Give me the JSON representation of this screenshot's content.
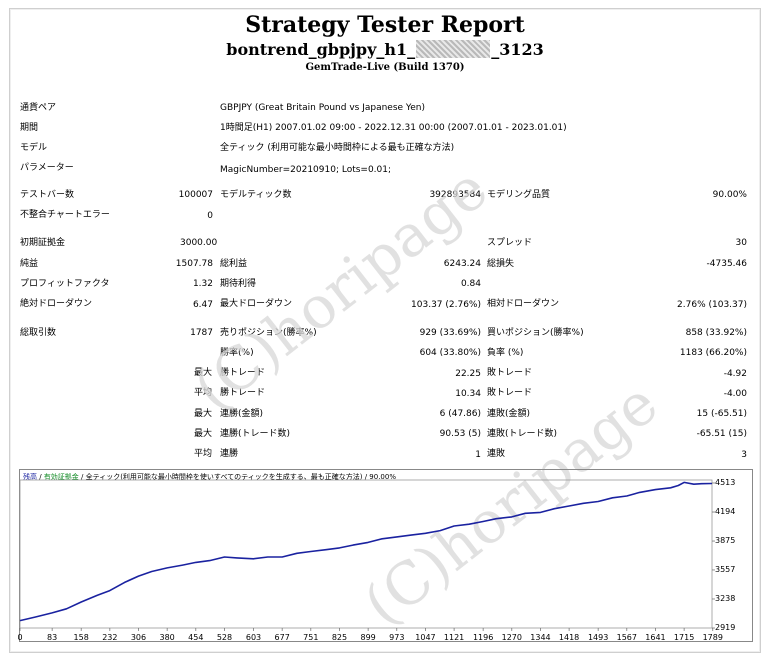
{
  "report": {
    "title": "Strategy Tester Report",
    "ea_name_prefix": "bontrend_gbpjpy_h1_",
    "ea_name_suffix": "_3123",
    "build": "GemTrade-Live (Build 1370)"
  },
  "settings": [
    {
      "label": "通貨ペア",
      "value": "GBPJPY (Great Britain Pound vs Japanese Yen)"
    },
    {
      "label": "期間",
      "value": "1時間足(H1) 2007.01.02 09:00 - 2022.12.31 00:00 (2007.01.01 - 2023.01.01)"
    },
    {
      "label": "モデル",
      "value": "全ティック (利用可能な最小時間枠による最も正確な方法)"
    },
    {
      "label": "パラメーター",
      "value": "MagicNumber=20210910; Lots=0.01;"
    }
  ],
  "stats": {
    "bars_label": "テストバー数",
    "bars": "100007",
    "ticks_label": "モデルティック数",
    "ticks": "392893584",
    "quality_label": "モデリング品質",
    "quality": "90.00%",
    "mismatch_label": "不整合チャートエラー",
    "mismatch": "0",
    "deposit_label": "初期証拠金",
    "deposit": "3000.00",
    "spread_label": "スプレッド",
    "spread": "30",
    "net_label": "純益",
    "net": "1507.78",
    "gross_profit_label": "総利益",
    "gross_profit": "6243.24",
    "gross_loss_label": "総損失",
    "gross_loss": "-4735.46",
    "pf_label": "プロフィットファクタ",
    "pf": "1.32",
    "expected_label": "期待利得",
    "expected": "0.84",
    "abs_dd_label": "絶対ドローダウン",
    "abs_dd": "6.47",
    "max_dd_label": "最大ドローダウン",
    "max_dd": "103.37 (2.76%)",
    "rel_dd_label": "相対ドローダウン",
    "rel_dd": "2.76% (103.37)",
    "total_trades_label": "総取引数",
    "total_trades": "1787",
    "short_label": "売りポジション(勝率%)",
    "short": "929 (33.69%)",
    "long_label": "買いポジション(勝率%)",
    "long": "858 (33.92%)",
    "win_pct_label": "勝率(%)",
    "win_pct": "604 (33.80%)",
    "loss_pct_label": "負率 (%)",
    "loss_pct": "1183 (66.20%)",
    "max_win_label": "勝トレード",
    "max_win": "22.25",
    "max_loss_label": "敗トレード",
    "max_loss": "-4.92",
    "avg_win_label": "勝トレード",
    "avg_win": "10.34",
    "avg_loss_label": "敗トレード",
    "avg_loss": "-4.00",
    "cons_wins_label": "連勝(金額)",
    "cons_wins": "6 (47.86)",
    "cons_losses_label": "連敗(金額)",
    "cons_losses": "15 (-65.51)",
    "cons_profit_label": "連勝(トレード数)",
    "cons_profit": "90.53 (5)",
    "cons_loss_label": "連敗(トレード数)",
    "cons_loss": "-65.51 (15)",
    "avg_cons_wins_label": "連勝",
    "avg_cons_wins": "1",
    "avg_cons_losses_label": "連敗",
    "avg_cons_losses": "3",
    "max_prefix": "最大",
    "avg_prefix": "平均"
  },
  "watermark": "(C)horipage",
  "chart_legend": {
    "balance": "残高",
    "equity": "有効証拠金",
    "model": "全ティック(利用可能な最小時間枠を使いすべてのティックを生成する、最も正確な方法)",
    "quality": "90.00%"
  },
  "chart_data": {
    "type": "line",
    "x_ticks": [
      "0",
      "83",
      "158",
      "232",
      "306",
      "380",
      "454",
      "528",
      "603",
      "677",
      "751",
      "825",
      "899",
      "973",
      "1047",
      "1121",
      "1196",
      "1270",
      "1344",
      "1418",
      "1493",
      "1567",
      "1641",
      "1715",
      "1789"
    ],
    "y_ticks": [
      "4513",
      "4194",
      "3875",
      "3557",
      "3238",
      "2919"
    ],
    "ylim": [
      2919,
      4513
    ],
    "xlim": [
      0,
      1787
    ],
    "series": [
      {
        "color": "#1a22a0",
        "x": [
          0,
          40,
          83,
          120,
          158,
          200,
          232,
          270,
          306,
          340,
          380,
          420,
          454,
          490,
          528,
          560,
          603,
          640,
          677,
          715,
          751,
          790,
          825,
          860,
          899,
          935,
          973,
          1010,
          1047,
          1085,
          1121,
          1160,
          1196,
          1230,
          1270,
          1305,
          1344,
          1380,
          1418,
          1455,
          1493,
          1530,
          1567,
          1600,
          1641,
          1680,
          1700,
          1715,
          1740,
          1760,
          1787
        ],
        "values": [
          3000,
          3040,
          3085,
          3130,
          3205,
          3280,
          3330,
          3420,
          3490,
          3540,
          3580,
          3610,
          3640,
          3660,
          3700,
          3690,
          3680,
          3700,
          3700,
          3740,
          3760,
          3780,
          3800,
          3830,
          3860,
          3900,
          3920,
          3940,
          3960,
          3990,
          4040,
          4060,
          4090,
          4120,
          4140,
          4180,
          4190,
          4230,
          4260,
          4290,
          4310,
          4350,
          4370,
          4410,
          4440,
          4460,
          4485,
          4520,
          4500,
          4505,
          4508
        ]
      }
    ]
  }
}
